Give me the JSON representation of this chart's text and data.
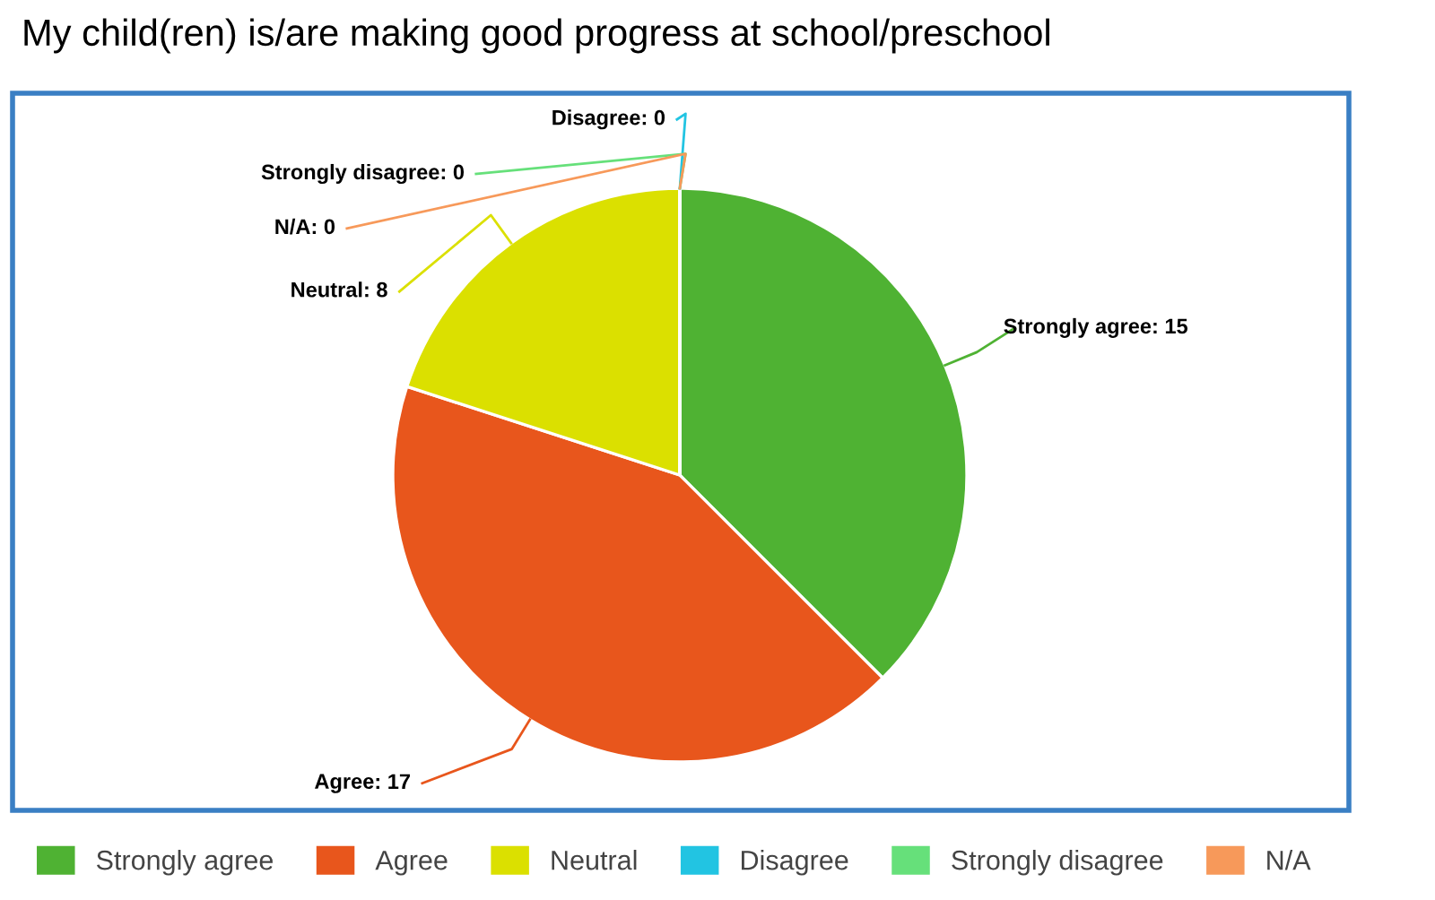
{
  "chart_data": {
    "type": "pie",
    "title": "My child(ren) is/are making good progress at school/preschool",
    "categories": [
      "Strongly agree",
      "Agree",
      "Neutral",
      "Disagree",
      "Strongly disagree",
      "N/A"
    ],
    "values": [
      15,
      17,
      8,
      0,
      0,
      0
    ],
    "colors": [
      "#4fb233",
      "#e8561c",
      "#dbe000",
      "#22c4e2",
      "#66e07a",
      "#f7995a"
    ],
    "value_labels": [
      ": 15",
      ": 17",
      ": 8",
      ": 0",
      ": 0",
      ": 0"
    ],
    "legend": "bottom"
  }
}
